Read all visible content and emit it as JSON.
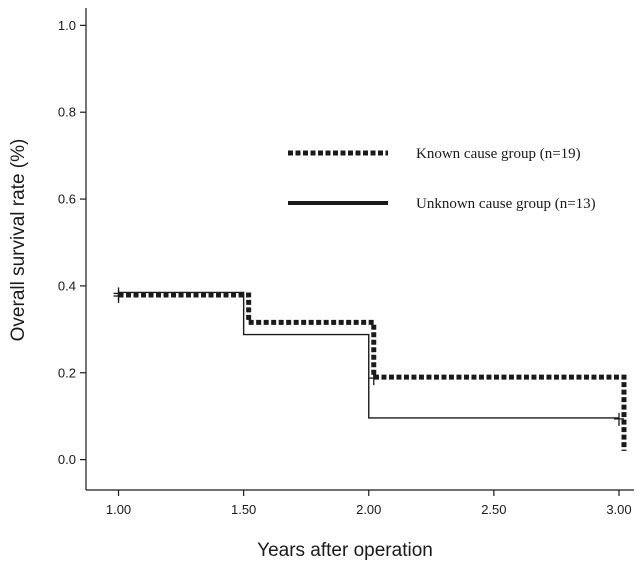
{
  "chart_data": {
    "type": "line",
    "subtype": "kaplan-meier-step",
    "xlabel": "Years after operation",
    "ylabel": "Overall survival rate (%)",
    "xlim": [
      0.87,
      3.06
    ],
    "ylim": [
      -0.07,
      1.04
    ],
    "x_ticks": [
      "1.00",
      "1.50",
      "2.00",
      "2.50",
      "3.00"
    ],
    "y_ticks": [
      "0.0",
      "0.2",
      "0.4",
      "0.6",
      "0.8",
      "1.0"
    ],
    "grid": false,
    "legend_position": "upper-right",
    "series": [
      {
        "name": "Known cause group (n=19)",
        "style": "dotted-thick",
        "color": "#1a1a1a",
        "x": [
          1.0,
          1.52,
          2.02,
          3.02
        ],
        "y": [
          0.379,
          0.316,
          0.19,
          0.02
        ],
        "censored": [
          [
            1.0,
            0.379
          ],
          [
            2.02,
            0.19
          ]
        ]
      },
      {
        "name": "Unknown cause group (n=13)",
        "style": "solid",
        "color": "#1a1a1a",
        "x": [
          1.0,
          1.5,
          2.0,
          3.0
        ],
        "y": [
          0.385,
          0.288,
          0.096,
          0.096
        ],
        "censored": [
          [
            1.0,
            0.385
          ],
          [
            3.0,
            0.096
          ]
        ]
      }
    ]
  }
}
